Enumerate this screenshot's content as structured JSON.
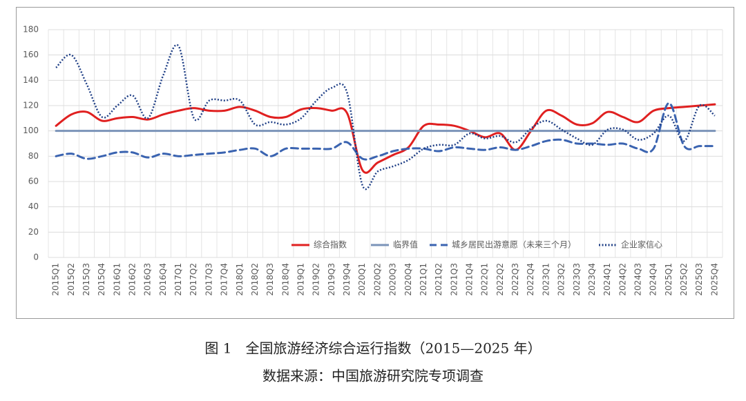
{
  "chart_data": {
    "type": "line",
    "categories": [
      "2015Q1",
      "2015Q2",
      "2015Q3",
      "2015Q4",
      "2016Q1",
      "2016Q2",
      "2016Q3",
      "2016Q4",
      "2017Q1",
      "2017Q2",
      "2017Q3",
      "2017Q4",
      "2018Q1",
      "2018Q2",
      "2018Q3",
      "2018Q4",
      "2019Q1",
      "2019Q2",
      "2019Q3",
      "2019Q4",
      "2020Q1",
      "2020Q2",
      "2020Q3",
      "2020Q4",
      "2021Q1",
      "2021Q2",
      "2021Q3",
      "2021Q4",
      "2022Q1",
      "2022Q2",
      "2022Q3",
      "2022Q4",
      "2023Q1",
      "2023Q2",
      "2023Q3",
      "2023Q4",
      "2024Q1",
      "2024Q2",
      "2024Q3",
      "2024Q4",
      "2025Q1",
      "2025Q2",
      "2025Q3",
      "2025Q4"
    ],
    "series": [
      {
        "name": "综合指数",
        "color": "#e02020",
        "dash": "solid",
        "values": [
          104,
          113,
          115,
          108,
          110,
          111,
          109,
          113,
          116,
          118,
          116,
          116,
          119,
          116,
          111,
          111,
          117,
          118,
          116,
          114,
          69,
          75,
          81,
          87,
          104,
          105,
          104,
          100,
          95,
          98,
          85,
          100,
          116,
          112,
          105,
          106,
          115,
          111,
          107,
          116,
          118,
          119,
          120,
          121
        ]
      },
      {
        "name": "临界值",
        "color": "#7a93b8",
        "dash": "solid",
        "values": [
          100,
          100,
          100,
          100,
          100,
          100,
          100,
          100,
          100,
          100,
          100,
          100,
          100,
          100,
          100,
          100,
          100,
          100,
          100,
          100,
          100,
          100,
          100,
          100,
          100,
          100,
          100,
          100,
          100,
          100,
          100,
          100,
          100,
          100,
          100,
          100,
          100,
          100,
          100,
          100,
          100,
          100,
          100,
          100
        ]
      },
      {
        "name": "城乡居民出游意愿（未来三个月）",
        "color": "#3a63b0",
        "dash": "dashed",
        "values": [
          80,
          82,
          78,
          80,
          83,
          83,
          79,
          82,
          80,
          81,
          82,
          83,
          85,
          86,
          80,
          86,
          86,
          86,
          86,
          91,
          78,
          80,
          84,
          86,
          86,
          84,
          87,
          86,
          85,
          87,
          85,
          88,
          92,
          93,
          90,
          90,
          89,
          90,
          86,
          86,
          122,
          88,
          88,
          88
        ]
      },
      {
        "name": "企业家信心",
        "color": "#1f3f86",
        "dash": "dotted",
        "values": [
          150,
          160,
          137,
          111,
          120,
          128,
          110,
          144,
          167,
          110,
          124,
          124,
          124,
          105,
          107,
          105,
          110,
          124,
          134,
          130,
          57,
          68,
          72,
          77,
          86,
          89,
          89,
          98,
          94,
          96,
          91,
          102,
          108,
          101,
          94,
          89,
          101,
          101,
          93,
          98,
          112,
          92,
          120,
          112
        ]
      }
    ],
    "ylim": [
      0,
      180
    ],
    "yticks": [
      0,
      20,
      40,
      60,
      80,
      100,
      120,
      140,
      160,
      180
    ],
    "grid": true,
    "legend": "bottom-right",
    "caption": "图 1　全国旅游经济综合运行指数（2015—2025 年）",
    "source": "数据来源：中国旅游研究院专项调查"
  }
}
